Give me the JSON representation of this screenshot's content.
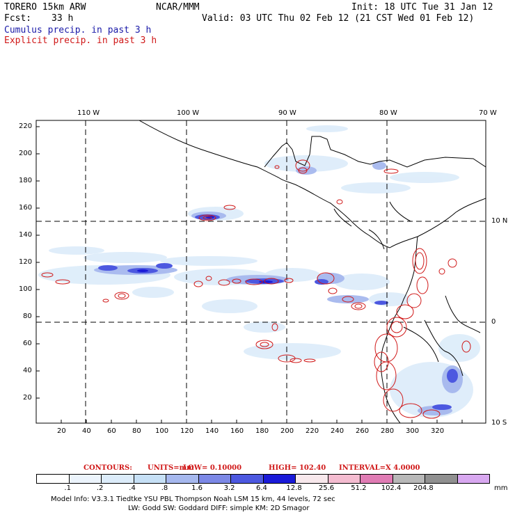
{
  "header": {
    "model": "TORERO  15km ARW",
    "org": "NCAR/MMM",
    "init": "Init: 18 UTC Tue 31 Jan 12",
    "fcst_label": "Fcst:",
    "fcst_value": "33 h",
    "valid": "Valid: 03 UTC Thu 02 Feb 12 (21 CST Wed 01 Feb 12)",
    "cumulus": "Cumulus precip. in past 3 h",
    "explicit": "Explicit precip. in past 3 h"
  },
  "map": {
    "lon_labels": [
      "110 W",
      "100 W",
      "90 W",
      "80 W",
      "70 W"
    ],
    "lat_labels": [
      "10 N",
      "0",
      "10 S"
    ],
    "x_ticks": [
      "20",
      "40",
      "60",
      "80",
      "100",
      "120",
      "140",
      "160",
      "180",
      "200",
      "220",
      "240",
      "260",
      "280",
      "300",
      "320"
    ],
    "y_ticks": [
      "220",
      "200",
      "180",
      "160",
      "140",
      "120",
      "100",
      "80",
      "60",
      "40",
      "20"
    ]
  },
  "contours_line": {
    "label": "CONTOURS:",
    "units": "UNITS=mm",
    "low": "LOW= 0.10000",
    "high": "HIGH= 102.40",
    "interval": "INTERVAL=X 4.0000"
  },
  "colorbar": {
    "colors": [
      "#ffffff",
      "#ecf4fc",
      "#dcecfa",
      "#c6e0f6",
      "#a6b8ee",
      "#7c88e6",
      "#4c58e0",
      "#1a1ad8",
      "#f8e8ec",
      "#f4bcd0",
      "#e07cb4",
      "#b8b8b8",
      "#909090",
      "#d8a8f0"
    ],
    "labels": [
      ".1",
      ".2",
      ".4",
      ".8",
      "1.6",
      "3.2",
      "6.4",
      "12.8",
      "25.6",
      "51.2",
      "102.4",
      "204.8"
    ],
    "unit": "mm"
  },
  "footer": {
    "line1": "Model Info: V3.3.1    Tiedtke YSU PBL  Thompson    Noah LSM  15 km,   44 levels,   72 sec",
    "line2": "LW: Godd SW: Goddard DIFF: simple KM: 2D Smagor"
  }
}
